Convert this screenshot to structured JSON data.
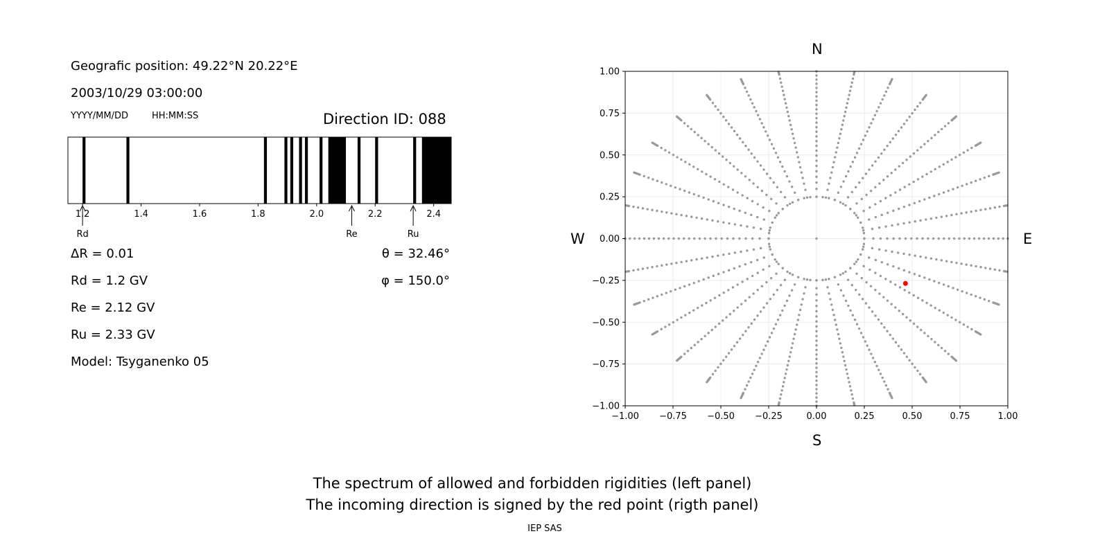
{
  "info": {
    "geo_position": "Geografic position: 49.22°N 20.22°E",
    "datetime": "2003/10/29 03:00:00",
    "date_format": "YYYY/MM/DD",
    "time_format": "HH:MM:SS",
    "direction_id": "Direction ID: 088",
    "delta_r": "ΔR = 0.01",
    "rd": "Rd = 1.2 GV",
    "re": "Re = 2.12 GV",
    "ru": "Ru = 2.33 GV",
    "model": "Model: Tsyganenko 05",
    "theta": "θ = 32.46°",
    "phi": "φ = 150.0°"
  },
  "compass": {
    "north": "N",
    "south": "S",
    "west": "W",
    "east": "E"
  },
  "footer": {
    "line1": "The spectrum of allowed and forbidden rigidities (left panel)",
    "line2": "The incoming direction is signed by the red point (rigth panel)",
    "credit": "IEP SAS"
  },
  "colors": {
    "forbidden": "#000000",
    "grid_points": "#999999",
    "direction_point": "#ff0000"
  },
  "chart_data": [
    {
      "type": "bar",
      "name": "rigidity-spectrum",
      "xlim": [
        1.15,
        2.46
      ],
      "ticks": [
        1.2,
        1.4,
        1.6,
        1.8,
        2.0,
        2.2,
        2.4
      ],
      "tick_labels": [
        "1.2",
        "1.4",
        "1.6",
        "1.8",
        "2.0",
        "2.2",
        "2.4"
      ],
      "forbidden_bands": [
        [
          1.2,
          1.21
        ],
        [
          1.35,
          1.36
        ],
        [
          1.82,
          1.83
        ],
        [
          1.89,
          1.9
        ],
        [
          1.91,
          1.92
        ],
        [
          1.94,
          1.95
        ],
        [
          1.96,
          1.97
        ],
        [
          2.01,
          2.02
        ],
        [
          2.04,
          2.1
        ],
        [
          2.14,
          2.15
        ],
        [
          2.2,
          2.21
        ],
        [
          2.33,
          2.34
        ],
        [
          2.36,
          2.46
        ]
      ],
      "markers": [
        {
          "label": "Rd",
          "value": 1.2
        },
        {
          "label": "Re",
          "value": 2.12
        },
        {
          "label": "Ru",
          "value": 2.33
        }
      ]
    },
    {
      "type": "scatter",
      "name": "direction-map",
      "xlim": [
        -1.0,
        1.0
      ],
      "ylim": [
        -1.0,
        1.0
      ],
      "ticks": [
        -1.0,
        -0.75,
        -0.5,
        -0.25,
        0.0,
        0.25,
        0.5,
        0.75,
        1.0
      ],
      "tick_labels": [
        "−1.00",
        "−0.75",
        "−0.50",
        "−0.25",
        "0.00",
        "0.25",
        "0.50",
        "0.75",
        "1.00"
      ],
      "y_tick_labels": [
        "−1.00",
        "−0.75",
        "−0.50",
        "−0.25",
        "0.00",
        "0.25",
        "0.50",
        "0.75",
        "1.00"
      ],
      "grid": true,
      "rays_deg_step": 11.25,
      "ray_radius_range": [
        0.25,
        1.0
      ],
      "inner_circle_radius": 0.25,
      "highlight_point": {
        "x": 0.465,
        "y": -0.268
      }
    }
  ]
}
